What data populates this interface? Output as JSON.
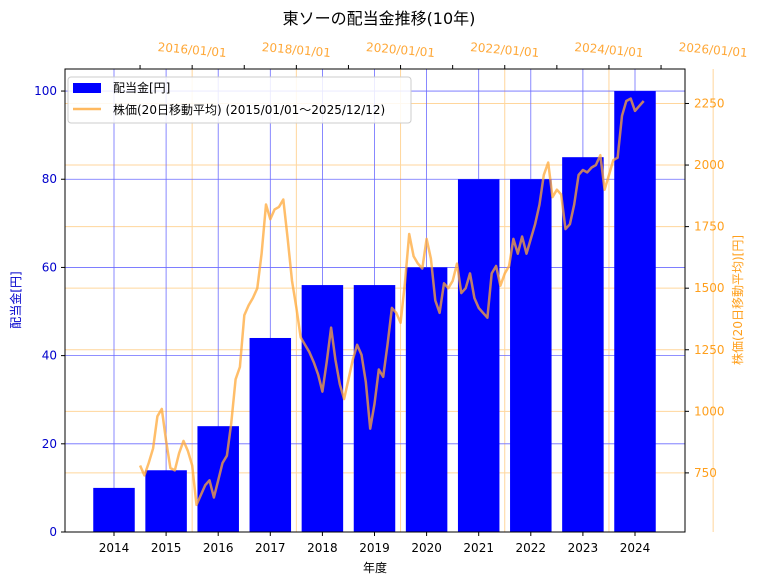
{
  "chart_data": {
    "type": "bar",
    "title": "東ソーの配当金推移(10年)",
    "xlabel": "年度",
    "ylabel": "配当金[円]",
    "y2label": "株価(20日移動平均)[円]",
    "categories": [
      "2014",
      "2015",
      "2016",
      "2017",
      "2018",
      "2019",
      "2020",
      "2021",
      "2022",
      "2023",
      "2024"
    ],
    "series": [
      {
        "name": "配当金[円]",
        "type": "bar",
        "axis": "left",
        "color": "#0000ff",
        "values": [
          10,
          14,
          24,
          44,
          56,
          56,
          60,
          80,
          80,
          85,
          100
        ]
      },
      {
        "name": "株価(20日移動平均) (2015/01/01～2025/12/12)",
        "type": "line",
        "axis": "right",
        "color": "#ffa838",
        "points": [
          [
            "2015/01",
            780
          ],
          [
            "2015/02",
            740
          ],
          [
            "2015/03",
            790
          ],
          [
            "2015/04",
            850
          ],
          [
            "2015/05",
            980
          ],
          [
            "2015/06",
            1010
          ],
          [
            "2015/07",
            880
          ],
          [
            "2015/08",
            770
          ],
          [
            "2015/09",
            760
          ],
          [
            "2015/10",
            830
          ],
          [
            "2015/11",
            880
          ],
          [
            "2015/12",
            840
          ],
          [
            "2016/01",
            780
          ],
          [
            "2016/02",
            620
          ],
          [
            "2016/03",
            660
          ],
          [
            "2016/04",
            700
          ],
          [
            "2016/05",
            720
          ],
          [
            "2016/06",
            650
          ],
          [
            "2016/07",
            720
          ],
          [
            "2016/08",
            790
          ],
          [
            "2016/09",
            820
          ],
          [
            "2016/10",
            950
          ],
          [
            "2016/11",
            1130
          ],
          [
            "2016/12",
            1180
          ],
          [
            "2017/01",
            1390
          ],
          [
            "2017/02",
            1430
          ],
          [
            "2017/03",
            1460
          ],
          [
            "2017/04",
            1500
          ],
          [
            "2017/05",
            1640
          ],
          [
            "2017/06",
            1840
          ],
          [
            "2017/07",
            1780
          ],
          [
            "2017/08",
            1820
          ],
          [
            "2017/09",
            1830
          ],
          [
            "2017/10",
            1860
          ],
          [
            "2017/11",
            1700
          ],
          [
            "2017/12",
            1530
          ],
          [
            "2018/01",
            1420
          ],
          [
            "2018/02",
            1300
          ],
          [
            "2018/03",
            1270
          ],
          [
            "2018/04",
            1240
          ],
          [
            "2018/05",
            1200
          ],
          [
            "2018/06",
            1150
          ],
          [
            "2018/07",
            1080
          ],
          [
            "2018/08",
            1200
          ],
          [
            "2018/09",
            1340
          ],
          [
            "2018/10",
            1210
          ],
          [
            "2018/11",
            1110
          ],
          [
            "2018/12",
            1050
          ],
          [
            "2019/01",
            1130
          ],
          [
            "2019/02",
            1210
          ],
          [
            "2019/03",
            1270
          ],
          [
            "2019/04",
            1230
          ],
          [
            "2019/05",
            1120
          ],
          [
            "2019/06",
            930
          ],
          [
            "2019/07",
            1030
          ],
          [
            "2019/08",
            1170
          ],
          [
            "2019/09",
            1140
          ],
          [
            "2019/10",
            1270
          ],
          [
            "2019/11",
            1420
          ],
          [
            "2019/12",
            1400
          ],
          [
            "2020/01",
            1360
          ],
          [
            "2020/02",
            1520
          ],
          [
            "2020/03",
            1720
          ],
          [
            "2020/04",
            1630
          ],
          [
            "2020/05",
            1600
          ],
          [
            "2020/06",
            1580
          ],
          [
            "2020/07",
            1700
          ],
          [
            "2020/08",
            1620
          ],
          [
            "2020/09",
            1450
          ],
          [
            "2020/10",
            1400
          ],
          [
            "2020/11",
            1520
          ],
          [
            "2020/12",
            1500
          ],
          [
            "2021/01",
            1530
          ],
          [
            "2021/02",
            1600
          ],
          [
            "2021/03",
            1480
          ],
          [
            "2021/04",
            1500
          ],
          [
            "2021/05",
            1560
          ],
          [
            "2021/06",
            1460
          ],
          [
            "2021/07",
            1420
          ],
          [
            "2021/08",
            1400
          ],
          [
            "2021/09",
            1380
          ],
          [
            "2021/10",
            1560
          ],
          [
            "2021/11",
            1590
          ],
          [
            "2021/12",
            1510
          ],
          [
            "2022/01",
            1560
          ],
          [
            "2022/02",
            1590
          ],
          [
            "2022/03",
            1700
          ],
          [
            "2022/04",
            1640
          ],
          [
            "2022/05",
            1710
          ],
          [
            "2022/06",
            1640
          ],
          [
            "2022/07",
            1700
          ],
          [
            "2022/08",
            1760
          ],
          [
            "2022/09",
            1840
          ],
          [
            "2022/10",
            1960
          ],
          [
            "2022/11",
            2010
          ],
          [
            "2022/12",
            1870
          ],
          [
            "2023/01",
            1900
          ],
          [
            "2023/02",
            1880
          ],
          [
            "2023/03",
            1740
          ],
          [
            "2023/04",
            1760
          ],
          [
            "2023/05",
            1840
          ],
          [
            "2023/06",
            1960
          ],
          [
            "2023/07",
            1980
          ],
          [
            "2023/08",
            1970
          ],
          [
            "2023/09",
            1990
          ],
          [
            "2023/10",
            2000
          ],
          [
            "2023/11",
            2040
          ],
          [
            "2023/12",
            1900
          ],
          [
            "2024/01",
            1960
          ],
          [
            "2024/02",
            2020
          ],
          [
            "2024/03",
            2030
          ],
          [
            "2024/04",
            2200
          ],
          [
            "2024/05",
            2260
          ],
          [
            "2024/06",
            2270
          ],
          [
            "2024/07",
            2220
          ],
          [
            "2024/08",
            2240
          ],
          [
            "2024/09",
            2260
          ]
        ]
      }
    ],
    "ylim": [
      0,
      105
    ],
    "y2lim": [
      510,
      2390
    ],
    "yticks": [
      0,
      20,
      40,
      60,
      80,
      100
    ],
    "y2ticks": [
      750,
      1000,
      1250,
      1500,
      1750,
      2000,
      2250
    ],
    "x2ticks": [
      "2016/01/01",
      "2018/01/01",
      "2020/01/01",
      "2022/01/01",
      "2024/01/01",
      "2026/01/01"
    ],
    "grid": true,
    "legend_position": "upper left"
  },
  "legend": {
    "bar_label": "配当金[円]",
    "line_label": "株価(20日移動平均) (2015/01/01～2025/12/12)"
  },
  "colors": {
    "bar": "#0000ff",
    "line": "#ffa838",
    "left_axis": "#0000cc",
    "right_axis": "#ff9f1c",
    "grid_left": "#6b6bff",
    "grid_right": "#ffd69c"
  }
}
